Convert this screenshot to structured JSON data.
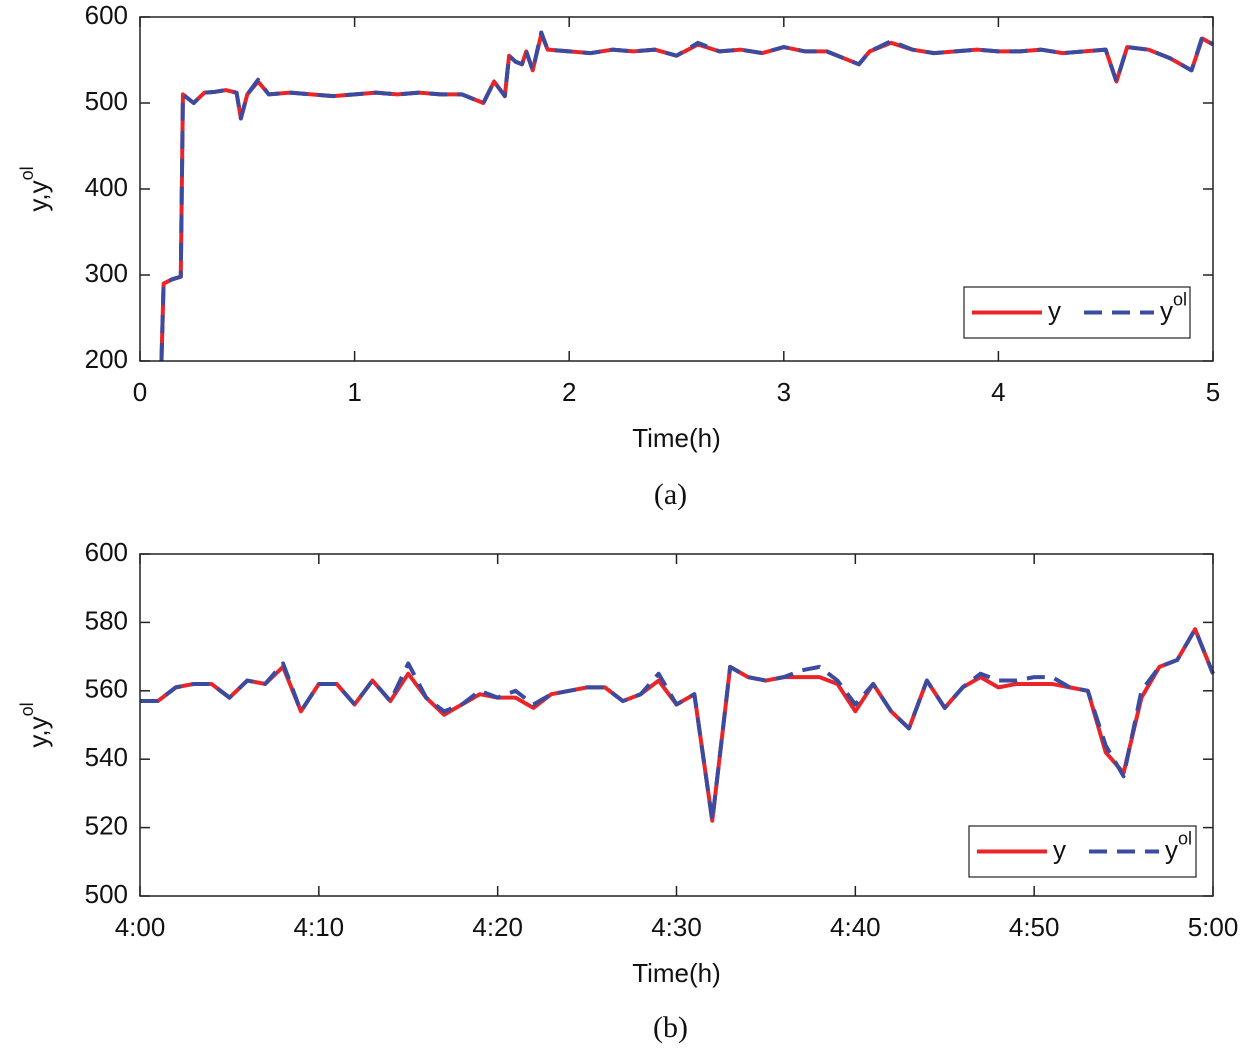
{
  "chart_data": [
    {
      "type": "line",
      "caption": "(a)",
      "xlabel": "Time(h)",
      "ylabel": "y,y",
      "ylabel_sup": "ol",
      "xlim": [
        0,
        5
      ],
      "xticks": [
        0,
        1,
        2,
        3,
        4,
        5
      ],
      "ylim": [
        200,
        600
      ],
      "yticks": [
        200,
        300,
        400,
        500,
        600
      ],
      "legend": "lower right",
      "x": [
        0.1,
        0.11,
        0.15,
        0.19,
        0.2,
        0.25,
        0.3,
        0.35,
        0.4,
        0.45,
        0.47,
        0.5,
        0.55,
        0.6,
        0.7,
        0.8,
        0.9,
        1.0,
        1.1,
        1.2,
        1.3,
        1.4,
        1.5,
        1.6,
        1.65,
        1.7,
        1.72,
        1.75,
        1.78,
        1.8,
        1.83,
        1.87,
        1.9,
        2.0,
        2.1,
        2.2,
        2.3,
        2.4,
        2.5,
        2.6,
        2.7,
        2.8,
        2.9,
        3.0,
        3.1,
        3.2,
        3.35,
        3.4,
        3.5,
        3.6,
        3.7,
        3.8,
        3.9,
        4.0,
        4.1,
        4.2,
        4.3,
        4.4,
        4.5,
        4.55,
        4.6,
        4.7,
        4.8,
        4.9,
        4.95,
        5.0
      ],
      "series": [
        {
          "name": "y",
          "color": "#e8262a",
          "dashed": false,
          "values": [
            200,
            290,
            295,
            298,
            510,
            500,
            512,
            513,
            515,
            512,
            482,
            510,
            525,
            510,
            512,
            510,
            508,
            510,
            512,
            510,
            512,
            510,
            510,
            500,
            525,
            508,
            555,
            548,
            545,
            560,
            538,
            580,
            562,
            560,
            558,
            562,
            560,
            562,
            555,
            568,
            560,
            562,
            558,
            565,
            560,
            560,
            545,
            560,
            570,
            562,
            558,
            560,
            562,
            560,
            560,
            562,
            558,
            560,
            562,
            525,
            565,
            562,
            552,
            538,
            575,
            568
          ]
        },
        {
          "name": "y",
          "name_sup": "ol",
          "color": "#3a4ba0",
          "dashed": true,
          "values": [
            200,
            290,
            295,
            298,
            510,
            500,
            512,
            513,
            515,
            512,
            482,
            510,
            527,
            510,
            512,
            510,
            508,
            510,
            512,
            510,
            512,
            510,
            510,
            500,
            525,
            508,
            555,
            548,
            545,
            560,
            538,
            582,
            562,
            560,
            558,
            562,
            560,
            562,
            555,
            570,
            560,
            562,
            558,
            565,
            560,
            560,
            545,
            560,
            572,
            562,
            558,
            560,
            562,
            560,
            560,
            562,
            558,
            560,
            562,
            525,
            565,
            562,
            552,
            538,
            577,
            568
          ]
        }
      ]
    },
    {
      "type": "line",
      "caption": "(b)",
      "xlabel": "Time(h)",
      "ylabel": "y,y",
      "ylabel_sup": "ol",
      "xlim": [
        240,
        300
      ],
      "xticks": [
        {
          "value": 240,
          "label": "4:00"
        },
        {
          "value": 250,
          "label": "4:10"
        },
        {
          "value": 260,
          "label": "4:20"
        },
        {
          "value": 270,
          "label": "4:30"
        },
        {
          "value": 280,
          "label": "4:40"
        },
        {
          "value": 290,
          "label": "4:50"
        },
        {
          "value": 300,
          "label": "5:00"
        }
      ],
      "ylim": [
        500,
        600
      ],
      "yticks": [
        500,
        520,
        540,
        560,
        580,
        600
      ],
      "legend": "lower right",
      "x": [
        240,
        241,
        242,
        243,
        244,
        245,
        246,
        247,
        248,
        249,
        250,
        251,
        252,
        253,
        254,
        255,
        256,
        257,
        258,
        259,
        260,
        261,
        262,
        263,
        264,
        265,
        266,
        267,
        268,
        269,
        270,
        271,
        272,
        273,
        274,
        275,
        276,
        277,
        278,
        279,
        280,
        281,
        282,
        283,
        284,
        285,
        286,
        287,
        288,
        289,
        290,
        291,
        292,
        293,
        294,
        295,
        296,
        297,
        298,
        299,
        300
      ],
      "series": [
        {
          "name": "y",
          "color": "#e8262a",
          "dashed": false,
          "values": [
            557,
            557,
            561,
            562,
            562,
            558,
            563,
            562,
            567,
            554,
            562,
            562,
            556,
            563,
            557,
            565,
            558,
            553,
            556,
            559,
            558,
            558,
            555,
            559,
            560,
            561,
            561,
            557,
            559,
            563,
            556,
            559,
            522,
            567,
            564,
            563,
            564,
            564,
            564,
            562,
            554,
            562,
            554,
            549,
            563,
            555,
            561,
            564,
            561,
            562,
            562,
            562,
            561,
            560,
            542,
            536,
            558,
            567,
            569,
            578,
            565
          ]
        },
        {
          "name": "y",
          "name_sup": "ol",
          "color": "#3a4ba0",
          "dashed": true,
          "values": [
            557,
            557,
            561,
            562,
            562,
            558,
            563,
            562,
            568,
            554,
            562,
            562,
            556,
            563,
            557,
            568,
            558,
            554,
            556,
            560,
            558,
            560,
            556,
            559,
            560,
            561,
            561,
            557,
            559,
            565,
            556,
            559,
            522,
            567,
            564,
            563,
            564,
            566,
            567,
            563,
            556,
            562,
            554,
            549,
            563,
            555,
            561,
            565,
            563,
            563,
            564,
            564,
            561,
            560,
            544,
            535,
            560,
            567,
            569,
            578,
            565
          ]
        }
      ]
    }
  ]
}
